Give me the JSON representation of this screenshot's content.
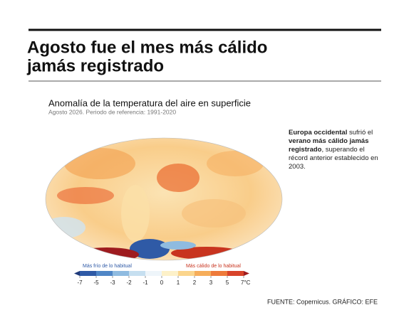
{
  "header": {
    "title_lines": [
      "Agosto fue el mes más cálido",
      "jamás registrado"
    ]
  },
  "map": {
    "title": "Anomalía de la temperatura del aire en superficie",
    "subtitle": "Agosto 2026. Periodo de referencia: 1991-2020"
  },
  "legend": {
    "cold_label": "Más frío de lo habitual",
    "warm_label": "Más cálido de lo habitual",
    "ticks": [
      -7,
      -5,
      -3,
      -2,
      -1,
      0,
      1,
      2,
      3,
      5,
      {
        "value": 7,
        "label": "7°C"
      }
    ],
    "colors": [
      "#1f3a7a",
      "#2f5aa6",
      "#4f86c6",
      "#8fbbe0",
      "#c6dff0",
      "#eef5fa",
      "#fdf1c9",
      "#fbd58c",
      "#f6ad5a",
      "#ee7a3a",
      "#d8432a",
      "#9e1b1f"
    ]
  },
  "annotation": [
    {
      "text": "Europa occidental",
      "bold": true
    },
    {
      "text": " sufrió el ",
      "bold": false
    },
    {
      "text": "verano más cálido jamás registrado",
      "bold": true
    },
    {
      "text": ",  superando el récord anterior establecido en 2003.",
      "bold": false
    }
  ],
  "source": "FUENTE: Copernicus. GRÁFICO: EFE"
}
